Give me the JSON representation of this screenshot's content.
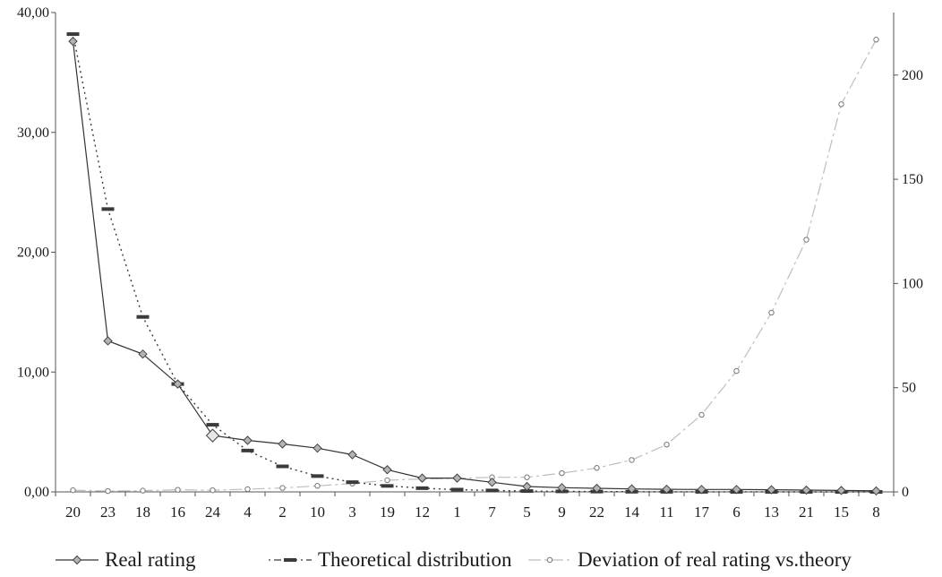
{
  "chart_data": {
    "type": "line",
    "categories": [
      "20",
      "23",
      "18",
      "16",
      "24",
      "4",
      "2",
      "10",
      "3",
      "19",
      "12",
      "1",
      "7",
      "5",
      "9",
      "22",
      "14",
      "11",
      "17",
      "6",
      "13",
      "21",
      "15",
      "8"
    ],
    "y_axis": {
      "ylim": [
        0,
        40
      ],
      "ticks": [
        "0,00",
        "10,00",
        "20,00",
        "30,00",
        "40,00"
      ],
      "tick_values": [
        0,
        10,
        20,
        30,
        40
      ]
    },
    "y2_axis": {
      "ylim": [
        0,
        230
      ],
      "ticks": [
        "0",
        "50",
        "100",
        "150",
        "200"
      ],
      "tick_values": [
        0,
        50,
        100,
        150,
        200
      ]
    },
    "series": [
      {
        "name": "Real rating",
        "axis": "left",
        "color": "#333333",
        "marker": "diamond",
        "values": [
          37.6,
          12.6,
          11.5,
          9.0,
          4.7,
          4.3,
          4.0,
          3.65,
          3.1,
          1.85,
          1.15,
          1.15,
          0.8,
          0.45,
          0.35,
          0.3,
          0.25,
          0.22,
          0.2,
          0.2,
          0.18,
          0.15,
          0.12,
          0.08
        ]
      },
      {
        "name": "Theoretical distribution",
        "axis": "left",
        "color": "#3a3a3a",
        "marker": "dash",
        "values": [
          38.2,
          23.6,
          14.6,
          9.0,
          5.6,
          3.45,
          2.13,
          1.32,
          0.81,
          0.5,
          0.31,
          0.19,
          0.12,
          0.07,
          0.045,
          0.028,
          0.017,
          0.011,
          0.007,
          0.004,
          0.0027,
          0.0017,
          0.001,
          0.0006
        ]
      },
      {
        "name": "Deviation of real rating vs.theory",
        "axis": "right",
        "color": "#bdbdbd",
        "marker": "circle",
        "values": [
          0.8,
          0.4,
          0.6,
          1.0,
          0.8,
          1.3,
          1.9,
          2.9,
          4.0,
          5.6,
          6.2,
          6.5,
          7.0,
          7.0,
          9.0,
          11.5,
          15.3,
          22.7,
          37.0,
          58.0,
          86.0,
          121.0,
          186.0,
          217.0
        ]
      }
    ],
    "legend_position": "bottom",
    "grid": false
  }
}
